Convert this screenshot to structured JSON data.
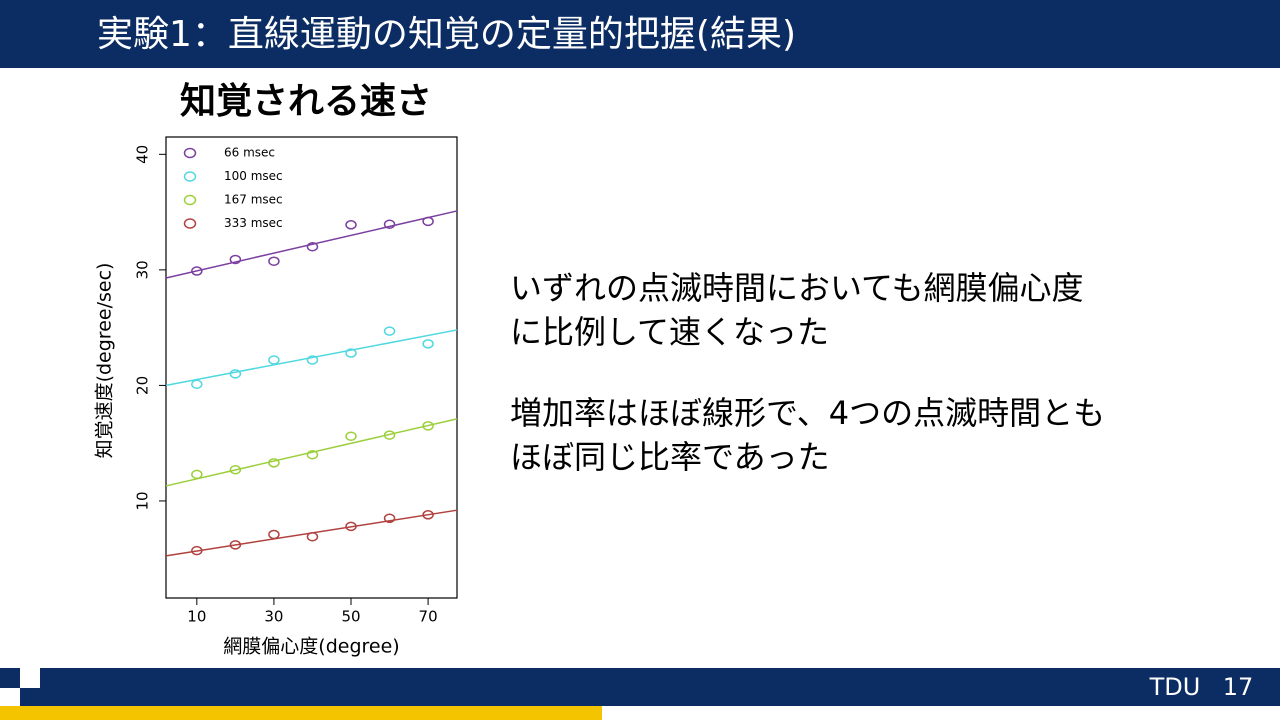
{
  "slide": {
    "title": "実験1：直線運動の知覚の定量的把握(結果)",
    "body": [
      [
        "いずれの点滅時間においても網膜偏心度",
        "に比例して速くなった"
      ],
      [
        "増加率はほぼ線形で、4つの点滅時間とも",
        "ほぼ同じ比率であった"
      ]
    ],
    "footer": "TDU",
    "page": "17"
  },
  "chart_data": {
    "type": "scatter",
    "title": "知覚される速さ",
    "x_label": "網膜偏心度(degree)",
    "y_label": "知覚速度(degree/sec)",
    "x": [
      10,
      20,
      30,
      40,
      50,
      60,
      70
    ],
    "xlim": [
      2,
      77.5
    ],
    "xticks": [
      10,
      30,
      50,
      70
    ],
    "ylim": [
      1.6,
      41.5
    ],
    "yticks": [
      10,
      20,
      30,
      40
    ],
    "legend": "top-left",
    "series": [
      {
        "name": "66 msec",
        "color": "#7b3fa0",
        "values": [
          29.9,
          30.9,
          30.75,
          32.0,
          33.9,
          33.95,
          34.2
        ],
        "fit_line": [
          29.3,
          35.1
        ]
      },
      {
        "name": "100 msec",
        "color": "#4fd8e0",
        "values": [
          20.1,
          21.0,
          22.2,
          22.2,
          22.8,
          24.7,
          23.6
        ],
        "fit_line": [
          20.0,
          24.8
        ]
      },
      {
        "name": "167 msec",
        "color": "#9ccf3c",
        "values": [
          12.3,
          12.7,
          13.3,
          14.0,
          15.6,
          15.7,
          16.5
        ],
        "fit_line": [
          11.3,
          17.1
        ]
      },
      {
        "name": "333 msec",
        "color": "#b0413e",
        "values": [
          5.7,
          6.2,
          7.1,
          6.9,
          7.8,
          8.5,
          8.8
        ],
        "fit_line": [
          5.25,
          9.2
        ]
      }
    ]
  }
}
